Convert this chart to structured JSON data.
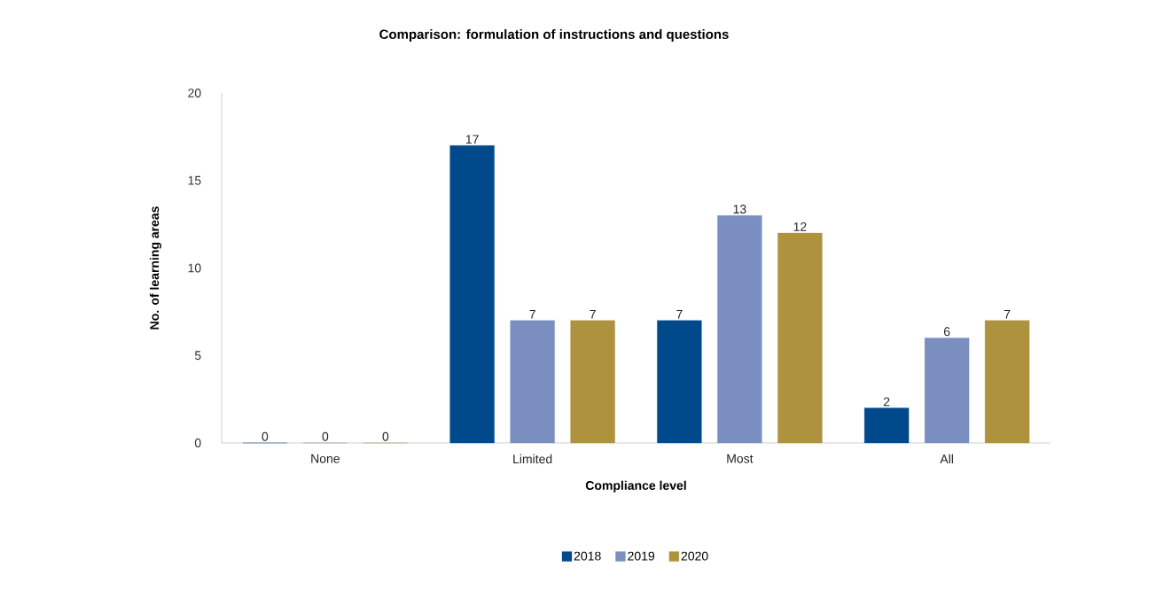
{
  "chart_data": {
    "type": "bar",
    "title": "Comparison: formulation of instructions and questions",
    "xlabel": "Compliance level",
    "ylabel": "No. of learning areas",
    "categories": [
      "None",
      "Limited",
      "Most",
      "All"
    ],
    "series": [
      {
        "name": "2018",
        "color": "#004a8c",
        "values": [
          0,
          17,
          7,
          2
        ]
      },
      {
        "name": "2019",
        "color": "#7a8fbf",
        "values": [
          0,
          7,
          13,
          6
        ]
      },
      {
        "name": "2020",
        "color": "#ae923e",
        "values": [
          0,
          7,
          12,
          7
        ]
      }
    ],
    "ylim": [
      0,
      20
    ],
    "yticks": [
      0,
      5,
      10,
      15,
      20
    ],
    "data_labels": true,
    "legend": "bottom"
  }
}
